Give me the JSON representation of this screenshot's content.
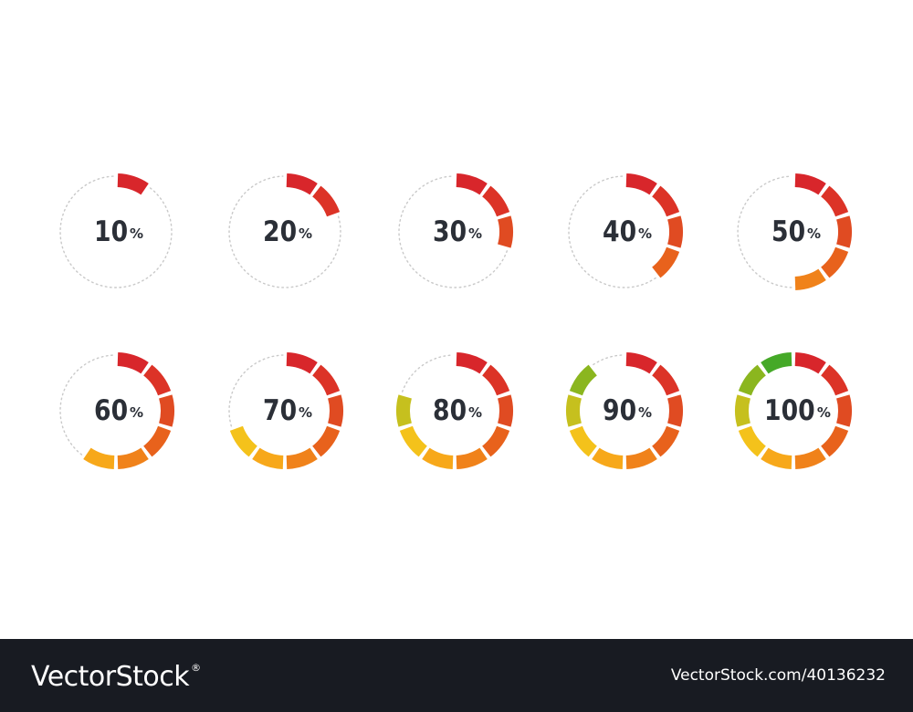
{
  "gauges": [
    {
      "value": 10,
      "label": "10",
      "unit": "%"
    },
    {
      "value": 20,
      "label": "20",
      "unit": "%"
    },
    {
      "value": 30,
      "label": "30",
      "unit": "%"
    },
    {
      "value": 40,
      "label": "40",
      "unit": "%"
    },
    {
      "value": 50,
      "label": "50",
      "unit": "%"
    },
    {
      "value": 60,
      "label": "60",
      "unit": "%"
    },
    {
      "value": 70,
      "label": "70",
      "unit": "%"
    },
    {
      "value": 80,
      "label": "80",
      "unit": "%"
    },
    {
      "value": 90,
      "label": "90",
      "unit": "%"
    },
    {
      "value": 100,
      "label": "100",
      "unit": "%"
    }
  ],
  "segment_colors": [
    "#d8262b",
    "#dc3327",
    "#e04b22",
    "#e8621c",
    "#f0821a",
    "#f7a81a",
    "#f4c21b",
    "#c6c01e",
    "#8bb61f",
    "#45a928"
  ],
  "track_color": "#c9c9c9",
  "label_color": "#2b2f37",
  "footer": {
    "brand": "VectorStock",
    "registered": "®",
    "image_id": "VectorStock.com/40136232"
  }
}
